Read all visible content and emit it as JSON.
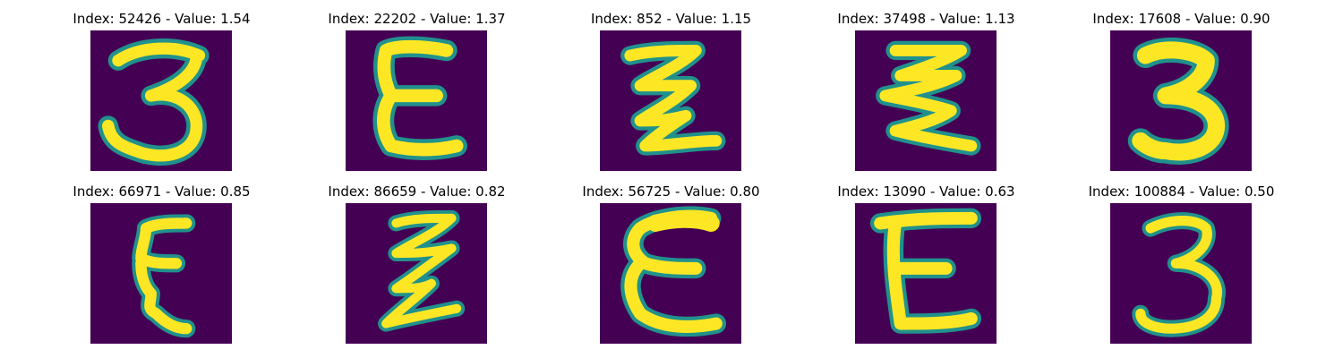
{
  "figure": {
    "panels": [
      {
        "title": "Index: 52426 - Value: 1.54",
        "glyph": "3-wide"
      },
      {
        "title": "Index: 22202 - Value: 1.37",
        "glyph": "E-curvy"
      },
      {
        "title": "Index: 852 - Value: 1.15",
        "glyph": "zigzag-3"
      },
      {
        "title": "Index: 37498 - Value: 1.13",
        "glyph": "zigzag-3"
      },
      {
        "title": "Index: 17608 - Value: 0.90",
        "glyph": "3-bold"
      },
      {
        "title": "Index: 66971 - Value: 0.85",
        "glyph": "E-curvy"
      },
      {
        "title": "Index: 86659 - Value: 0.82",
        "glyph": "zigzag-3"
      },
      {
        "title": "Index: 56725 - Value: 0.80",
        "glyph": "E-curvy"
      },
      {
        "title": "Index: 13090 - Value: 0.63",
        "glyph": "E-block"
      },
      {
        "title": "Index: 100884 - Value: 0.50",
        "glyph": "3-thin"
      }
    ],
    "colors": {
      "background": "#440154",
      "stroke_edge": "#21918c",
      "stroke_core": "#fde725"
    }
  }
}
